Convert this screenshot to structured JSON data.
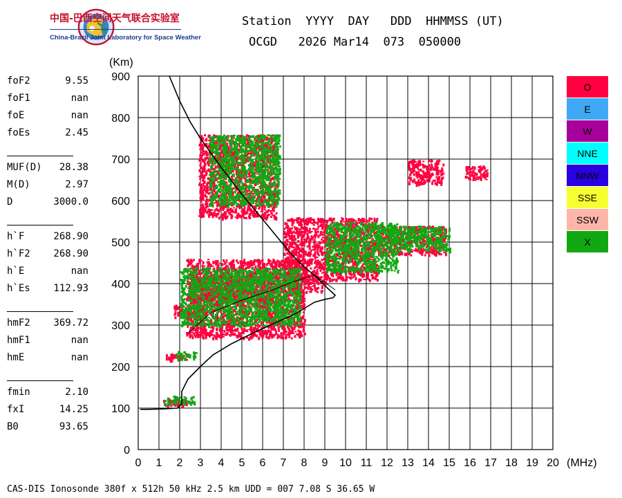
{
  "logo": {
    "cn": "中国-巴西空间天气联合实验室",
    "en": "China-Brazil Joint Laboratory for Space Weather"
  },
  "header": {
    "line1": "Station  YYYY  DAY   DDD  HHMMSS (UT)",
    "line2": "OCGD   2026 Mar14  073  050000"
  },
  "params": [
    [
      {
        "name": "foF2",
        "value": "9.55"
      },
      {
        "name": "foF1",
        "value": "nan"
      },
      {
        "name": "foE",
        "value": "nan"
      },
      {
        "name": "foEs",
        "value": "2.45"
      }
    ],
    [
      {
        "name": "MUF(D)",
        "value": "28.38"
      },
      {
        "name": "M(D)",
        "value": "2.97"
      },
      {
        "name": "D",
        "value": "3000.0"
      }
    ],
    [
      {
        "name": "h`F",
        "value": "268.90"
      },
      {
        "name": "h`F2",
        "value": "268.90"
      },
      {
        "name": "h`E",
        "value": "nan"
      },
      {
        "name": "h`Es",
        "value": "112.93"
      }
    ],
    [
      {
        "name": "hmF2",
        "value": "369.72"
      },
      {
        "name": "hmF1",
        "value": "nan"
      },
      {
        "name": "hmE",
        "value": "nan"
      }
    ],
    [
      {
        "name": "fmin",
        "value": "2.10"
      },
      {
        "name": "fxI",
        "value": "14.25"
      },
      {
        "name": "B0",
        "value": "93.65"
      }
    ]
  ],
  "footer": "CAS-DIS Ionosonde 380f x 512h 50 kHz 2.5 km UDD = 007 7.08 S 36.65 W",
  "legend": [
    {
      "label": "O",
      "color": "#ff0040"
    },
    {
      "label": "E",
      "color": "#3fa9f5"
    },
    {
      "label": "W",
      "color": "#a8009a"
    },
    {
      "label": "NNE",
      "color": "#00ffff"
    },
    {
      "label": "NNW",
      "color": "#2a00e0"
    },
    {
      "label": "SSE",
      "color": "#f8ff30"
    },
    {
      "label": "SSW",
      "color": "#ffb6a8"
    },
    {
      "label": "X",
      "color": "#12a812"
    }
  ],
  "chart_data": {
    "type": "scatter",
    "xlabel": "(MHz)",
    "ylabel": "(Km)",
    "xlim": [
      0,
      20
    ],
    "ylim": [
      0,
      900
    ],
    "xticks": [
      0,
      1,
      2,
      3,
      4,
      5,
      6,
      7,
      8,
      9,
      10,
      11,
      12,
      13,
      14,
      15,
      16,
      17,
      18,
      19,
      20
    ],
    "yticks": [
      0,
      100,
      200,
      300,
      400,
      500,
      600,
      700,
      800,
      900
    ],
    "grid": true,
    "legend_position": "right",
    "series": [
      {
        "name": "O",
        "color": "#ff0040",
        "regions": [
          {
            "x": [
              1.2,
              2.3
            ],
            "y": [
              105,
              125
            ]
          },
          {
            "x": [
              1.2,
              2.3
            ],
            "y": [
              215,
              232
            ]
          },
          {
            "x": [
              1.7,
              3.2
            ],
            "y": [
              320,
              350
            ]
          },
          {
            "x": [
              2.3,
              8.0
            ],
            "y": [
              270,
              460
            ]
          },
          {
            "x": [
              2.5,
              6.5
            ],
            "y": [
              360,
              420
            ]
          },
          {
            "x": [
              7.0,
              9.0
            ],
            "y": [
              380,
              560
            ]
          },
          {
            "x": [
              9.0,
              11.5
            ],
            "y": [
              410,
              560
            ]
          },
          {
            "x": [
              11.5,
              14.8
            ],
            "y": [
              470,
              540
            ]
          },
          {
            "x": [
              13.0,
              14.7
            ],
            "y": [
              640,
              700
            ]
          },
          {
            "x": [
              15.7,
              16.8
            ],
            "y": [
              650,
              685
            ]
          },
          {
            "x": [
              2.9,
              6.7
            ],
            "y": [
              560,
              760
            ]
          }
        ]
      },
      {
        "name": "X",
        "color": "#12a812",
        "regions": [
          {
            "x": [
              1.2,
              2.7
            ],
            "y": [
              110,
              130
            ]
          },
          {
            "x": [
              1.8,
              2.8
            ],
            "y": [
              220,
              238
            ]
          },
          {
            "x": [
              2.0,
              7.8
            ],
            "y": [
              300,
              440
            ]
          },
          {
            "x": [
              9.0,
              12.5
            ],
            "y": [
              430,
              550
            ]
          },
          {
            "x": [
              12.0,
              15.0
            ],
            "y": [
              480,
              540
            ]
          },
          {
            "x": [
              3.4,
              6.8
            ],
            "y": [
              590,
              760
            ]
          }
        ]
      }
    ],
    "ordinary_trace": [
      [
        0.1,
        97
      ],
      [
        0.5,
        97
      ],
      [
        1.2,
        98
      ],
      [
        1.9,
        100
      ],
      [
        2.1,
        110
      ],
      [
        2.1,
        140
      ],
      [
        2.4,
        170
      ],
      [
        3.0,
        200
      ],
      [
        3.6,
        228
      ],
      [
        4.5,
        255
      ],
      [
        5.5,
        280
      ],
      [
        6.5,
        303
      ],
      [
        7.5,
        325
      ],
      [
        8.0,
        340
      ],
      [
        8.5,
        355
      ],
      [
        9.0,
        362
      ],
      [
        9.4,
        366
      ],
      [
        9.5,
        372
      ],
      [
        9.0,
        395
      ],
      [
        8.5,
        420
      ],
      [
        8.0,
        440
      ],
      [
        7.5,
        465
      ],
      [
        6.9,
        500
      ],
      [
        6.0,
        555
      ],
      [
        5.0,
        615
      ],
      [
        4.0,
        680
      ],
      [
        3.0,
        750
      ],
      [
        2.5,
        790
      ],
      [
        2.0,
        840
      ],
      [
        1.5,
        900
      ]
    ],
    "inner_trace": [
      [
        2.4,
        280
      ],
      [
        3.5,
        330
      ],
      [
        5.0,
        360
      ],
      [
        6.5,
        385
      ],
      [
        7.5,
        405
      ],
      [
        8.5,
        420
      ],
      [
        9.5,
        385
      ]
    ]
  }
}
